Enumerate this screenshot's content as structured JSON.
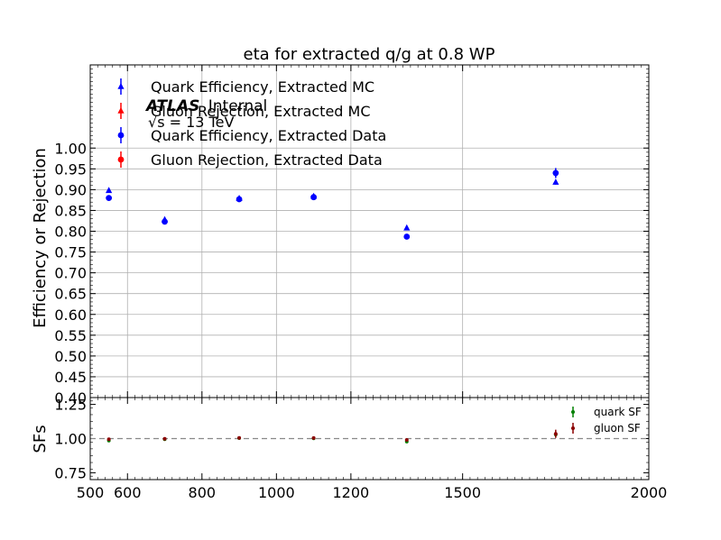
{
  "chart_data": {
    "type": "scatter",
    "title": "eta for extracted q/g at 0.8 WP",
    "annotation": {
      "experiment": "ATLAS",
      "status": "Internal",
      "energy": "√s = 13 TeV"
    },
    "x_ticks": [
      "500",
      "600",
      "800",
      "1000",
      "1200",
      "1500",
      "2000"
    ],
    "x_tick_values": [
      500,
      600,
      800,
      1000,
      1200,
      1500,
      2000
    ],
    "top_panel": {
      "ylabel": "Efficiency or Rejection",
      "ylim": [
        0.4,
        1.2
      ],
      "y_ticks": [
        "0.40",
        "0.45",
        "0.50",
        "0.55",
        "0.60",
        "0.65",
        "0.70",
        "0.75",
        "0.80",
        "0.85",
        "0.90",
        "0.95",
        "1.00"
      ],
      "grid": true,
      "legend_placement": "top-left",
      "series": [
        {
          "name": "Quark Efficiency, Extracted MC",
          "marker": "triangle",
          "color": "#0000ff",
          "x": [
            550,
            700,
            900,
            1100,
            1350,
            1750
          ],
          "y": [
            0.898,
            0.828,
            0.879,
            0.884,
            0.808,
            0.918
          ],
          "err": [
            0.003,
            0.005,
            0.003,
            0.003,
            0.004,
            0.006
          ]
        },
        {
          "name": "Gluon Rejection, Extracted MC",
          "marker": "triangle",
          "color": "#ff0000",
          "x": [],
          "y": [],
          "err": []
        },
        {
          "name": "Quark Efficiency, Extracted Data",
          "marker": "circle",
          "color": "#0000ff",
          "x": [
            550,
            700,
            900,
            1100,
            1350,
            1750
          ],
          "y": [
            0.88,
            0.823,
            0.877,
            0.882,
            0.787,
            0.94
          ],
          "err": [
            0.003,
            0.005,
            0.003,
            0.003,
            0.004,
            0.012
          ]
        },
        {
          "name": "Gluon Rejection, Extracted Data",
          "marker": "circle",
          "color": "#ff0000",
          "x": [],
          "y": [],
          "err": []
        }
      ]
    },
    "bottom_panel": {
      "ylabel": "SFs",
      "ylim": [
        0.7,
        1.3
      ],
      "y_ticks": [
        "0.75",
        "1.00",
        "1.25"
      ],
      "y_tick_values": [
        0.75,
        1.0,
        1.25
      ],
      "reference_line": 1.0,
      "legend_placement": "top-right",
      "series": [
        {
          "name": "quark SF",
          "color": "#008000",
          "x": [
            550,
            700,
            900,
            1100,
            1350,
            1750
          ],
          "y": [
            0.985,
            0.995,
            1.003,
            1.002,
            0.978,
            1.03
          ],
          "err": [
            0.008,
            0.006,
            0.005,
            0.005,
            0.008,
            0.015
          ]
        },
        {
          "name": "gluon SF",
          "color": "#8b0000",
          "x": [
            550,
            700,
            900,
            1100,
            1350,
            1750
          ],
          "y": [
            0.995,
            0.998,
            1.005,
            1.004,
            0.99,
            1.035
          ],
          "err": [
            0.008,
            0.006,
            0.005,
            0.005,
            0.008,
            0.03
          ]
        }
      ]
    }
  }
}
